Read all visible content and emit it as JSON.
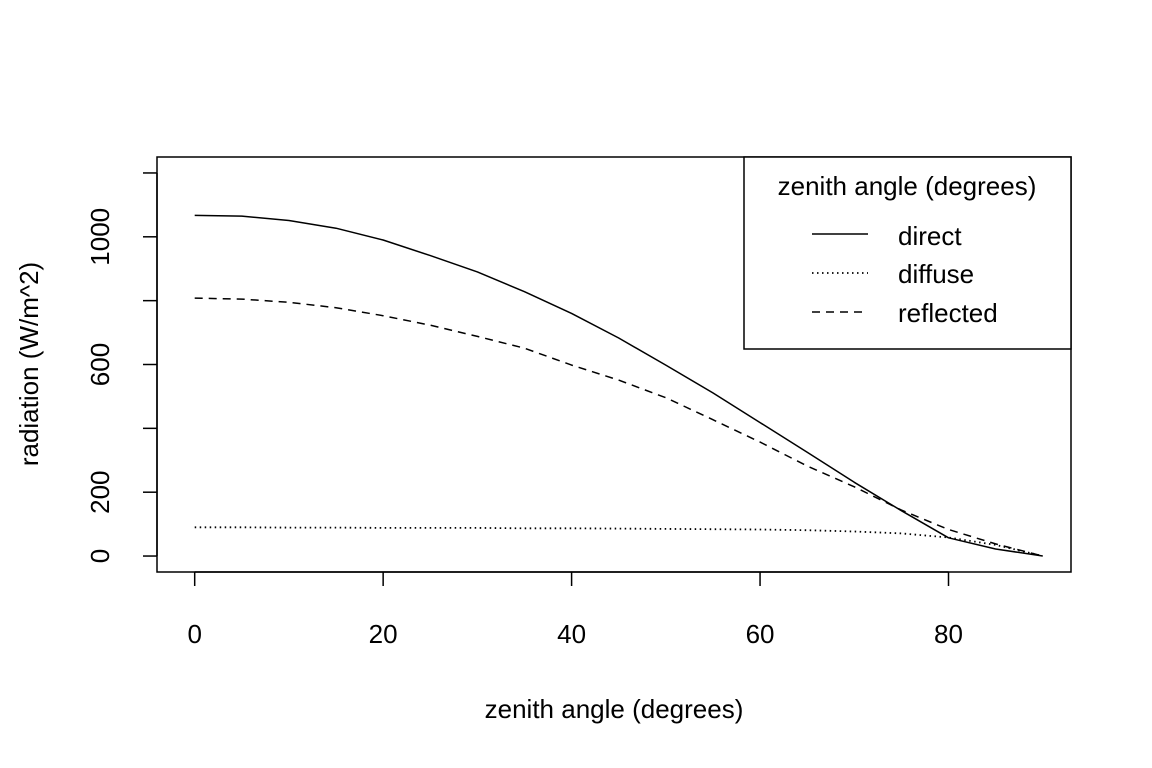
{
  "chart_data": {
    "type": "line",
    "title": "",
    "xlabel": "zenith angle (degrees)",
    "ylabel": "radiation (W/m^2)",
    "xlim": [
      -4,
      93
    ],
    "ylim": [
      -50,
      1250
    ],
    "x_ticks": [
      0,
      20,
      40,
      60,
      80
    ],
    "x_tick_labels": [
      "0",
      "20",
      "40",
      "60",
      "80"
    ],
    "y_ticks": [
      0,
      200,
      400,
      600,
      800,
      1000,
      1200
    ],
    "y_tick_labels": [
      "0",
      "200",
      "",
      "600",
      "",
      "1000",
      ""
    ],
    "grid": false,
    "legend": {
      "title": "zenith angle (degrees)",
      "position": "top-right",
      "entries": [
        "direct",
        "diffuse",
        "reflected"
      ]
    },
    "x": [
      0,
      5,
      10,
      15,
      20,
      25,
      30,
      35,
      40,
      45,
      50,
      55,
      60,
      65,
      70,
      75,
      80,
      85,
      90
    ],
    "series": [
      {
        "name": "direct",
        "line_style": "solid",
        "values": [
          1067,
          1065,
          1051,
          1027,
          990,
          941,
          890,
          828,
          760,
          683,
          598,
          511,
          418,
          325,
          231,
          142,
          57,
          22,
          0
        ]
      },
      {
        "name": "diffuse",
        "line_style": "dotted",
        "values": [
          90,
          90,
          89,
          89,
          88,
          88,
          88,
          87,
          87,
          86,
          85,
          84,
          83,
          81,
          77,
          71,
          58,
          35,
          0
        ]
      },
      {
        "name": "reflected",
        "line_style": "dashed",
        "values": [
          808,
          805,
          795,
          778,
          753,
          723,
          688,
          651,
          598,
          551,
          496,
          427,
          357,
          282,
          217,
          144,
          83,
          38,
          0
        ]
      }
    ]
  }
}
